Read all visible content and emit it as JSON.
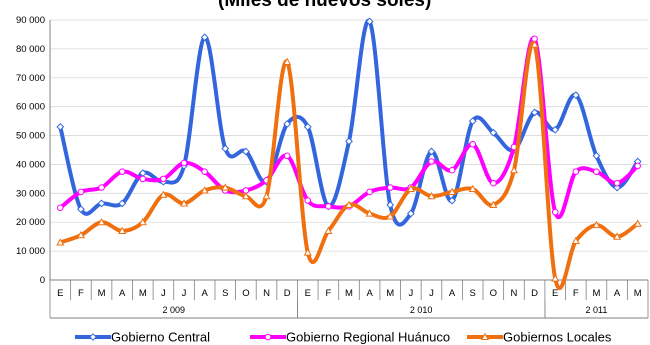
{
  "chart_data": {
    "type": "line",
    "title": "(Miles de nuevos soles)",
    "ylim": [
      0,
      90000
    ],
    "yticks": [
      "0",
      "10 000",
      "20 000",
      "30 000",
      "40 000",
      "50 000",
      "60 000",
      "70 000",
      "80 000",
      "90 000"
    ],
    "categories": [
      "E",
      "F",
      "M",
      "A",
      "M",
      "J",
      "J",
      "A",
      "S",
      "O",
      "N",
      "D",
      "E",
      "F",
      "M",
      "A",
      "M",
      "J",
      "J",
      "A",
      "S",
      "O",
      "N",
      "D",
      "E",
      "F",
      "M",
      "A",
      "M"
    ],
    "years": [
      {
        "label": "2 009",
        "start": 0,
        "end": 11
      },
      {
        "label": "2 010",
        "start": 12,
        "end": 23
      },
      {
        "label": "2 011",
        "start": 24,
        "end": 28
      }
    ],
    "series": [
      {
        "name": "Gobierno Central",
        "color": "#3366dd",
        "marker": "diamond",
        "values": [
          53000,
          24500,
          26500,
          26500,
          37000,
          34000,
          39500,
          84000,
          45500,
          44500,
          34000,
          54000,
          53000,
          25500,
          48000,
          89500,
          26000,
          23000,
          44500,
          27500,
          55000,
          51000,
          45000,
          58000,
          52000,
          64000,
          43000,
          32000,
          41000
        ]
      },
      {
        "name": "Gobierno Regional Huánuco",
        "color": "#ff00ff",
        "marker": "circle",
        "values": [
          25000,
          30500,
          32000,
          37500,
          35000,
          35000,
          40500,
          37500,
          31000,
          31000,
          34500,
          43000,
          27500,
          25500,
          25500,
          30500,
          32000,
          32000,
          41000,
          38000,
          47000,
          33500,
          46000,
          83500,
          23500,
          37500,
          37500,
          33500,
          39500
        ]
      },
      {
        "name": "Gobiernos Locales",
        "color": "#f07010",
        "marker": "triangle",
        "values": [
          13000,
          15500,
          20000,
          17000,
          20000,
          29500,
          26500,
          31000,
          32000,
          29000,
          29000,
          75500,
          9500,
          17000,
          26000,
          23000,
          22000,
          31500,
          29000,
          30500,
          31500,
          26000,
          38000,
          81500,
          500,
          13500,
          19000,
          15000,
          19500
        ]
      }
    ]
  }
}
